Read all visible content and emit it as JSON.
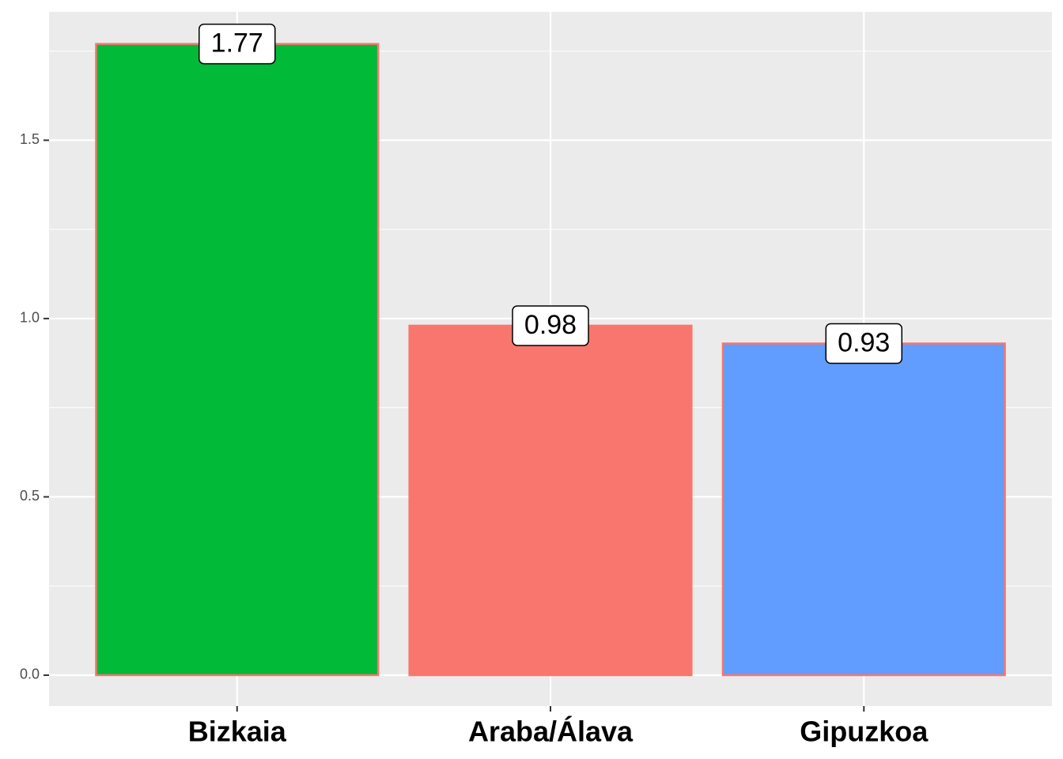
{
  "chart_data": {
    "type": "bar",
    "categories": [
      "Bizkaia",
      "Araba/Álava",
      "Gipuzkoa"
    ],
    "values": [
      1.77,
      0.98,
      0.93
    ],
    "colors": [
      "#00BA38",
      "#F8766D",
      "#619CFF"
    ],
    "edge_color": "#F8766D",
    "ylim": [
      -0.0865,
      1.86
    ],
    "yticks": [
      {
        "value": 0,
        "label": "0.0"
      },
      0.5,
      {
        "value": 1,
        "label": "1.0"
      },
      1.5
    ],
    "minor_yticks": [
      0.25,
      0.75,
      1.25,
      1.75
    ],
    "grid": true
  }
}
